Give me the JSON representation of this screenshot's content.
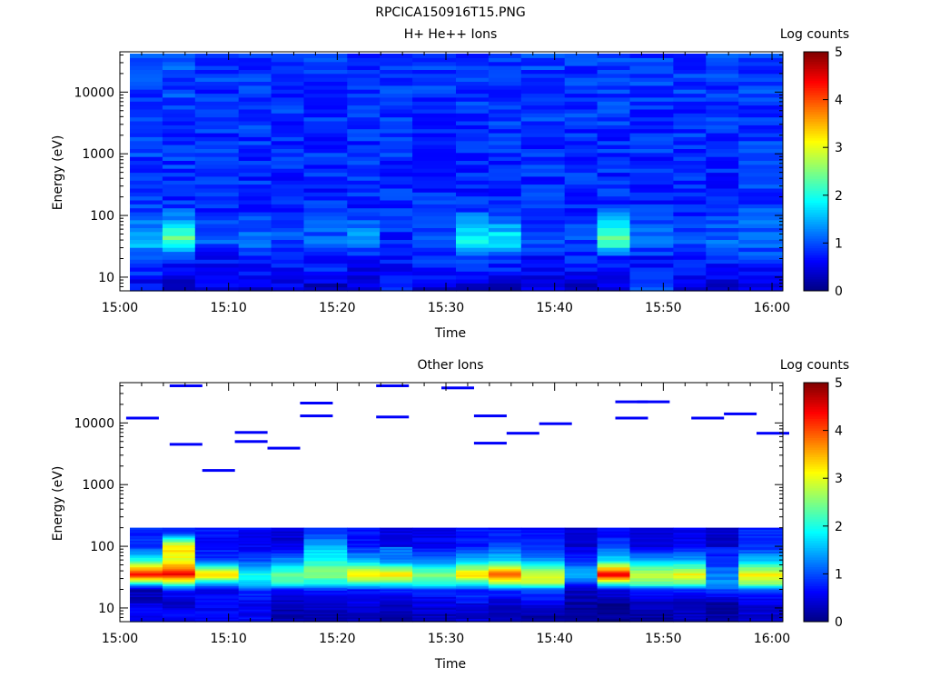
{
  "figure_title": "RPCICA150916T15.PNG",
  "chart_data": [
    {
      "type": "heatmap",
      "title": "H+ He++ Ions",
      "xlabel": "Time",
      "ylabel": "Energy (eV)",
      "x_ticks": [
        "15:00",
        "15:10",
        "15:20",
        "15:30",
        "15:40",
        "15:50",
        "16:00"
      ],
      "x_range": [
        "15:00",
        "16:01"
      ],
      "y_scale": "log",
      "y_ticks": [
        "10",
        "100",
        "1000",
        "10000"
      ],
      "ylim": [
        6,
        45000
      ],
      "colorbar": {
        "label": "Log counts",
        "range": [
          0,
          5
        ],
        "ticks": [
          "0",
          "1",
          "2",
          "3",
          "4",
          "5"
        ]
      },
      "time_bins": [
        "15:00",
        "15:03",
        "15:06",
        "15:10",
        "15:13",
        "15:16",
        "15:20",
        "15:23",
        "15:26",
        "15:30",
        "15:33",
        "15:36",
        "15:40",
        "15:43",
        "15:46",
        "15:50",
        "15:53",
        "15:56",
        "16:00"
      ],
      "profile_log_counts": [
        {
          "energy": 8,
          "log_counts": [
            0.6,
            0.4,
            0.5,
            0.4,
            0.5,
            0.4,
            0.5,
            null,
            0.4,
            0.5,
            0.4,
            0.5,
            0.4,
            0.5,
            null,
            0.4,
            0.5,
            0.5
          ]
        },
        {
          "energy": 12,
          "log_counts": [
            0.8,
            0.6,
            0.7,
            0.6,
            0.7,
            0.7,
            0.5,
            0.6,
            0.7,
            0.8,
            0.7,
            0.6,
            0.6,
            0.7,
            0.7,
            0.6,
            0.6,
            0.6
          ]
        },
        {
          "energy": 20,
          "log_counts": [
            1.0,
            0.7,
            0.7,
            0.8,
            0.7,
            0.8,
            0.6,
            0.7,
            0.8,
            0.9,
            0.8,
            0.7,
            0.8,
            0.7,
            0.7,
            0.8,
            0.8,
            0.9
          ]
        },
        {
          "energy": 40,
          "log_counts": [
            1.6,
            2.4,
            1.0,
            1.2,
            1.0,
            1.1,
            1.5,
            0.8,
            1.0,
            1.9,
            1.9,
            1.0,
            1.0,
            2.4,
            1.2,
            1.0,
            1.1,
            1.2
          ]
        },
        {
          "energy": 150,
          "log_counts": [
            0.9,
            0.8,
            0.8,
            0.8,
            0.8,
            0.8,
            0.8,
            0.8,
            0.8,
            0.8,
            0.8,
            0.8,
            0.8,
            0.8,
            0.8,
            0.8,
            0.8,
            0.9
          ]
        },
        {
          "energy": 30000,
          "log_counts": [
            0.9,
            1.0,
            0.9,
            0.9,
            0.9,
            0.9,
            0.9,
            0.9,
            0.9,
            0.9,
            0.9,
            0.9,
            0.9,
            0.9,
            0.9,
            0.9,
            0.9,
            0.9
          ]
        }
      ]
    },
    {
      "type": "heatmap",
      "title": "Other Ions",
      "xlabel": "Time",
      "ylabel": "Energy (eV)",
      "x_ticks": [
        "15:00",
        "15:10",
        "15:20",
        "15:30",
        "15:40",
        "15:50",
        "16:00"
      ],
      "x_range": [
        "15:00",
        "16:01"
      ],
      "y_scale": "log",
      "y_ticks": [
        "10",
        "100",
        "1000",
        "10000"
      ],
      "ylim": [
        6,
        45000
      ],
      "colorbar": {
        "label": "Log counts",
        "range": [
          0,
          5
        ],
        "ticks": [
          "0",
          "1",
          "2",
          "3",
          "4",
          "5"
        ]
      },
      "time_bins": [
        "15:00",
        "15:03",
        "15:06",
        "15:10",
        "15:13",
        "15:16",
        "15:20",
        "15:23",
        "15:26",
        "15:30",
        "15:33",
        "15:36",
        "15:40",
        "15:43",
        "15:46",
        "15:50",
        "15:53",
        "15:56",
        "16:00"
      ],
      "profile_log_counts": [
        {
          "energy": 8,
          "log_counts": [
            0.6,
            0.6,
            0.6,
            null,
            0.2,
            0.3,
            0.3,
            0.2,
            0.3,
            0.4,
            0.3,
            0.2,
            0.1,
            0.1,
            0.2,
            0.3,
            0.2,
            0.4
          ]
        },
        {
          "energy": 12,
          "log_counts": [
            null,
            0.3,
            null,
            0.6,
            0.3,
            0.4,
            0.5,
            0.4,
            0.5,
            null,
            0.4,
            0.6,
            0.2,
            0.1,
            0.3,
            0.3,
            0.2,
            0.5
          ]
        },
        {
          "energy": 20,
          "log_counts": [
            0.3,
            0.8,
            0.6,
            0.9,
            0.7,
            0.8,
            0.7,
            0.8,
            0.8,
            0.8,
            0.9,
            1.0,
            0.3,
            0.6,
            0.8,
            0.8,
            1.0,
            0.9
          ]
        },
        {
          "energy": 25,
          "log_counts": [
            1.8,
            2.4,
            1.5,
            1.6,
            2.0,
            1.9,
            2.1,
            1.9,
            2.0,
            2.0,
            2.5,
            2.7,
            0.9,
            2.0,
            2.3,
            2.3,
            1.3,
            2.6
          ]
        },
        {
          "energy": 35,
          "log_counts": [
            4.5,
            4.4,
            3.5,
            2.0,
            2.4,
            2.6,
            3.3,
            3.4,
            2.5,
            3.4,
            4.0,
            3.0,
            1.5,
            4.6,
            3.0,
            3.2,
            1.3,
            3.2
          ]
        },
        {
          "energy": 60,
          "log_counts": [
            2.0,
            3.0,
            0.9,
            1.0,
            1.3,
            2.0,
            1.6,
            1.2,
            1.2,
            1.6,
            1.7,
            1.4,
            0.9,
            1.8,
            1.5,
            1.5,
            0.8,
            1.6
          ]
        },
        {
          "energy": 100,
          "log_counts": [
            0.9,
            3.3,
            0.7,
            0.6,
            0.5,
            1.6,
            0.7,
            null,
            0.6,
            0.7,
            1.0,
            0.8,
            0.4,
            1.0,
            0.5,
            0.6,
            null,
            0.8
          ]
        },
        {
          "energy": 170,
          "log_counts": [
            0.8,
            0.9,
            0.7,
            0.6,
            0.4,
            0.8,
            0.7,
            0.5,
            0.5,
            0.8,
            0.7,
            0.7,
            0.4,
            0.6,
            0.5,
            0.5,
            0.4,
            0.8
          ]
        }
      ],
      "sparse_events": [
        {
          "time": "15:02",
          "energy": 12000
        },
        {
          "time": "15:06",
          "energy": 40000
        },
        {
          "time": "15:06",
          "energy": 4500
        },
        {
          "time": "15:09",
          "energy": 1700
        },
        {
          "time": "15:12",
          "energy": 7000
        },
        {
          "time": "15:12",
          "energy": 5000
        },
        {
          "time": "15:15",
          "energy": 3900
        },
        {
          "time": "15:18",
          "energy": 21000
        },
        {
          "time": "15:18",
          "energy": 13000
        },
        {
          "time": "15:25",
          "energy": 40000
        },
        {
          "time": "15:25",
          "energy": 12500
        },
        {
          "time": "15:31",
          "energy": 37000
        },
        {
          "time": "15:34",
          "energy": 13000
        },
        {
          "time": "15:34",
          "energy": 4700
        },
        {
          "time": "15:37",
          "energy": 6800
        },
        {
          "time": "15:40",
          "energy": 9700
        },
        {
          "time": "15:47",
          "energy": 22000
        },
        {
          "time": "15:49",
          "energy": 22000
        },
        {
          "time": "15:47",
          "energy": 12000
        },
        {
          "time": "15:54",
          "energy": 12000
        },
        {
          "time": "15:57",
          "energy": 14000
        },
        {
          "time": "16:00",
          "energy": 6800
        }
      ]
    }
  ]
}
